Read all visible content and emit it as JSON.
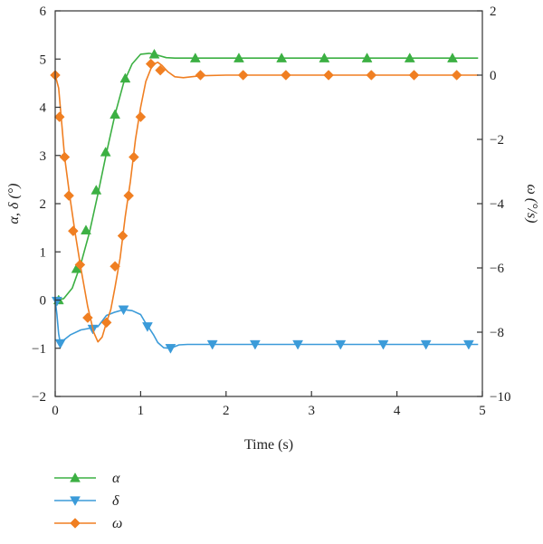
{
  "chart_data": {
    "type": "line",
    "xlabel": "Time (s)",
    "ylabel_left": "α, δ (°)",
    "ylabel_right": "ω (°/s)",
    "xlim": [
      0,
      5
    ],
    "ylim_left": [
      -2,
      6
    ],
    "ylim_right": [
      -10,
      2
    ],
    "x_ticks": [
      0,
      1,
      2,
      3,
      4,
      5
    ],
    "x_tick_labels": [
      "0",
      "1",
      "2",
      "3",
      "4",
      "5"
    ],
    "y_left_ticks": [
      -2,
      -1,
      0,
      1,
      2,
      3,
      4,
      5,
      6
    ],
    "y_left_tick_labels": [
      "−2",
      "−1",
      "0",
      "1",
      "2",
      "3",
      "4",
      "5",
      "6"
    ],
    "y_right_ticks": [
      -10,
      -8,
      -6,
      -4,
      -2,
      0,
      2
    ],
    "y_right_tick_labels": [
      "−10",
      "−8",
      "−6",
      "−4",
      "−2",
      "0",
      "2"
    ],
    "grid": false,
    "legend_position": "bottom-left, below plot",
    "series": [
      {
        "name": "α",
        "axis": "left",
        "color": "#3cb043",
        "marker": "triangle-up",
        "curve": [
          [
            0,
            0
          ],
          [
            0.1,
            0.03
          ],
          [
            0.2,
            0.25
          ],
          [
            0.3,
            0.75
          ],
          [
            0.4,
            1.4
          ],
          [
            0.5,
            2.2
          ],
          [
            0.6,
            3.05
          ],
          [
            0.7,
            3.85
          ],
          [
            0.8,
            4.5
          ],
          [
            0.9,
            4.9
          ],
          [
            1.0,
            5.1
          ],
          [
            1.1,
            5.12
          ],
          [
            1.2,
            5.08
          ],
          [
            1.3,
            5.03
          ],
          [
            1.4,
            5.02
          ],
          [
            1.6,
            5.02
          ],
          [
            2.0,
            5.02
          ],
          [
            3.0,
            5.02
          ],
          [
            4.0,
            5.02
          ],
          [
            4.95,
            5.02
          ]
        ],
        "points": [
          [
            0.04,
            0.0
          ],
          [
            0.25,
            0.65
          ],
          [
            0.36,
            1.45
          ],
          [
            0.48,
            2.28
          ],
          [
            0.59,
            3.07
          ],
          [
            0.7,
            3.85
          ],
          [
            0.82,
            4.6
          ],
          [
            1.16,
            5.1
          ],
          [
            1.64,
            5.02
          ],
          [
            2.15,
            5.02
          ],
          [
            2.65,
            5.02
          ],
          [
            3.15,
            5.02
          ],
          [
            3.65,
            5.02
          ],
          [
            4.15,
            5.02
          ],
          [
            4.65,
            5.02
          ]
        ]
      },
      {
        "name": "δ",
        "axis": "left",
        "color": "#3b9bd9",
        "marker": "triangle-down",
        "curve": [
          [
            0,
            0
          ],
          [
            0.02,
            -0.3
          ],
          [
            0.04,
            -0.7
          ],
          [
            0.06,
            -0.9
          ],
          [
            0.1,
            -0.83
          ],
          [
            0.18,
            -0.72
          ],
          [
            0.3,
            -0.62
          ],
          [
            0.42,
            -0.58
          ],
          [
            0.5,
            -0.55
          ],
          [
            0.6,
            -0.32
          ],
          [
            0.7,
            -0.25
          ],
          [
            0.8,
            -0.2
          ],
          [
            0.9,
            -0.22
          ],
          [
            1.0,
            -0.3
          ],
          [
            1.05,
            -0.45
          ],
          [
            1.1,
            -0.58
          ],
          [
            1.15,
            -0.72
          ],
          [
            1.2,
            -0.88
          ],
          [
            1.27,
            -0.99
          ],
          [
            1.35,
            -1.0
          ],
          [
            1.45,
            -0.93
          ],
          [
            1.55,
            -0.92
          ],
          [
            2.0,
            -0.92
          ],
          [
            3.0,
            -0.92
          ],
          [
            4.0,
            -0.92
          ],
          [
            4.95,
            -0.92
          ]
        ],
        "points": [
          [
            0.02,
            -0.02
          ],
          [
            0.06,
            -0.9
          ],
          [
            0.44,
            -0.6
          ],
          [
            0.8,
            -0.2
          ],
          [
            1.08,
            -0.55
          ],
          [
            1.35,
            -1.0
          ],
          [
            1.84,
            -0.92
          ],
          [
            2.34,
            -0.92
          ],
          [
            2.84,
            -0.92
          ],
          [
            3.34,
            -0.92
          ],
          [
            3.84,
            -0.92
          ],
          [
            4.34,
            -0.92
          ],
          [
            4.84,
            -0.92
          ]
        ]
      },
      {
        "name": "ω",
        "axis": "right",
        "color": "#f07f22",
        "marker": "diamond",
        "curve": [
          [
            0,
            0
          ],
          [
            0.04,
            -0.4
          ],
          [
            0.07,
            -1.3
          ],
          [
            0.11,
            -2.55
          ],
          [
            0.17,
            -3.75
          ],
          [
            0.23,
            -4.85
          ],
          [
            0.3,
            -6.0
          ],
          [
            0.38,
            -7.2
          ],
          [
            0.45,
            -8.0
          ],
          [
            0.5,
            -8.3
          ],
          [
            0.55,
            -8.15
          ],
          [
            0.6,
            -7.7
          ],
          [
            0.65,
            -7.3
          ],
          [
            0.7,
            -6.6
          ],
          [
            0.76,
            -5.7
          ],
          [
            0.82,
            -4.4
          ],
          [
            0.88,
            -3.3
          ],
          [
            0.94,
            -2.0
          ],
          [
            1.0,
            -1.0
          ],
          [
            1.06,
            -0.2
          ],
          [
            1.12,
            0.2
          ],
          [
            1.16,
            0.35
          ],
          [
            1.2,
            0.4
          ],
          [
            1.25,
            0.3
          ],
          [
            1.32,
            0.1
          ],
          [
            1.4,
            -0.05
          ],
          [
            1.5,
            -0.08
          ],
          [
            1.7,
            -0.02
          ],
          [
            2.0,
            0.0
          ],
          [
            3.0,
            0.0
          ],
          [
            4.0,
            0.0
          ],
          [
            4.95,
            0.0
          ]
        ],
        "points": [
          [
            0.0,
            0.0
          ],
          [
            0.05,
            -1.3
          ],
          [
            0.11,
            -2.55
          ],
          [
            0.16,
            -3.75
          ],
          [
            0.21,
            -4.85
          ],
          [
            0.29,
            -5.9
          ],
          [
            0.38,
            -7.55
          ],
          [
            0.6,
            -7.7
          ],
          [
            0.7,
            -5.95
          ],
          [
            0.79,
            -5.0
          ],
          [
            0.86,
            -3.75
          ],
          [
            0.92,
            -2.55
          ],
          [
            1.0,
            -1.3
          ],
          [
            1.12,
            0.35
          ],
          [
            1.23,
            0.15
          ],
          [
            1.7,
            0.0
          ],
          [
            2.2,
            0.0
          ],
          [
            2.7,
            0.0
          ],
          [
            3.2,
            0.0
          ],
          [
            3.7,
            0.0
          ],
          [
            4.2,
            0.0
          ],
          [
            4.7,
            0.0
          ]
        ]
      }
    ]
  }
}
